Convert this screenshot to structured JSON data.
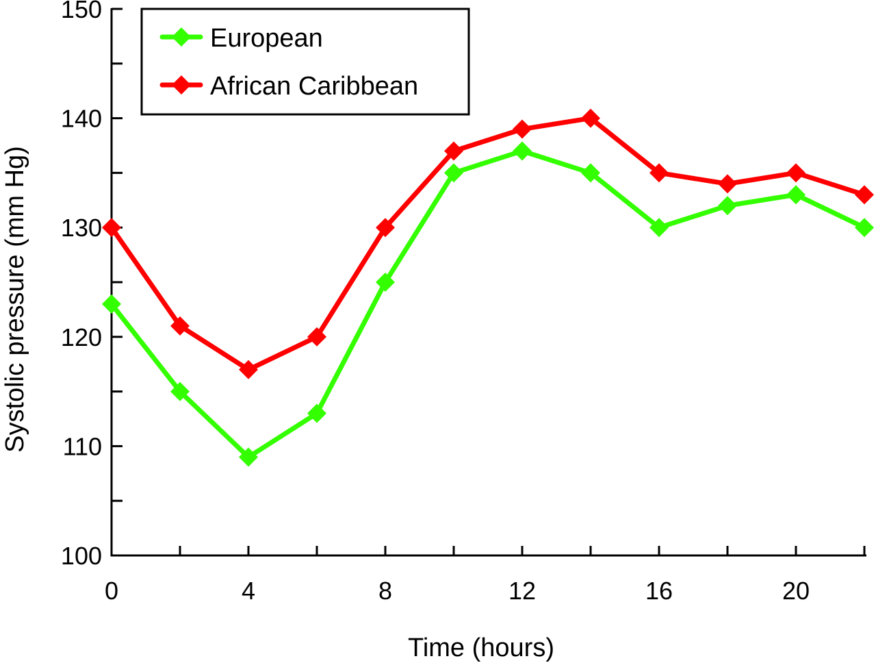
{
  "chart_data": {
    "type": "line",
    "xlabel": "Time (hours)",
    "ylabel": "Systolic pressure (mm Hg)",
    "xlim": [
      0,
      22
    ],
    "ylim": [
      100,
      150
    ],
    "x_ticks": [
      0,
      2,
      4,
      6,
      8,
      10,
      12,
      14,
      16,
      18,
      20,
      22
    ],
    "x_tick_labels": [
      "0",
      "",
      "4",
      "",
      "8",
      "",
      "12",
      "",
      "16",
      "",
      "20",
      ""
    ],
    "y_ticks": [
      100,
      105,
      110,
      115,
      120,
      125,
      130,
      135,
      140,
      145,
      150
    ],
    "y_tick_labels": [
      "100",
      "",
      "110",
      "",
      "120",
      "",
      "130",
      "",
      "140",
      "",
      "150"
    ],
    "legend_position": "top-left",
    "x": [
      0,
      2,
      4,
      6,
      8,
      10,
      12,
      14,
      16,
      18,
      20,
      22
    ],
    "series": [
      {
        "name": "European",
        "color": "#33ff00",
        "marker": "diamond",
        "values": [
          123,
          115,
          109,
          113,
          125,
          135,
          137,
          135,
          130,
          132,
          133,
          130
        ]
      },
      {
        "name": "African Caribbean",
        "color": "#ff0000",
        "marker": "diamond",
        "values": [
          130,
          121,
          117,
          120,
          130,
          137,
          139,
          140,
          135,
          134,
          135,
          133
        ]
      }
    ]
  }
}
